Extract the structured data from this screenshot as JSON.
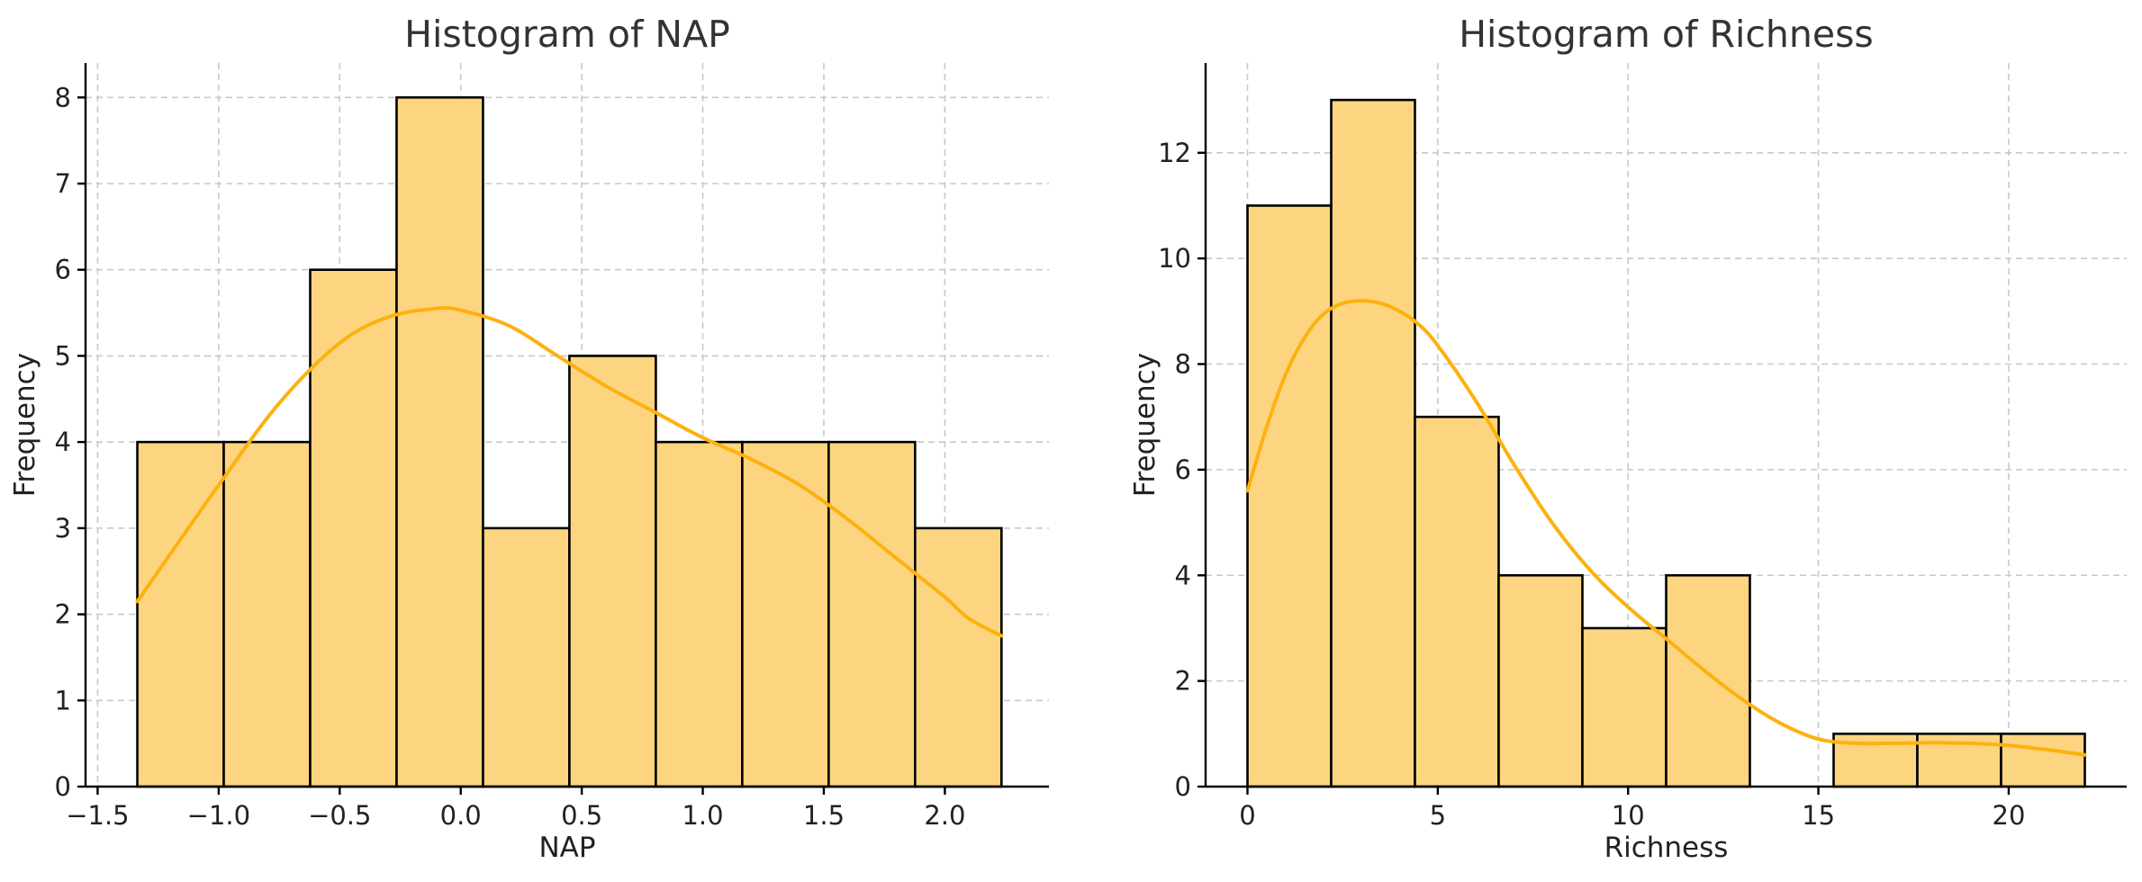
{
  "chart_data": [
    {
      "type": "bar",
      "title": "Histogram of NAP",
      "xlabel": "NAP",
      "ylabel": "Frequency",
      "xlim": [
        -1.55,
        2.43
      ],
      "ylim": [
        0,
        8.4
      ],
      "xticks": [
        -1.5,
        -1.0,
        -0.5,
        0.0,
        0.5,
        1.0,
        1.5,
        2.0
      ],
      "xtick_labels": [
        "−1.5",
        "−1.0",
        "−0.5",
        "0.0",
        "0.5",
        "1.0",
        "1.5",
        "2.0"
      ],
      "yticks": [
        0,
        1,
        2,
        3,
        4,
        5,
        6,
        7,
        8
      ],
      "ytick_labels": [
        "0",
        "1",
        "2",
        "3",
        "4",
        "5",
        "6",
        "7",
        "8"
      ],
      "grid": true,
      "bar_color": "#FDD580",
      "kde_color": "#FDB10F",
      "bins": [
        {
          "x0": -1.336,
          "x1": -0.979,
          "count": 4
        },
        {
          "x0": -0.979,
          "x1": -0.622,
          "count": 4
        },
        {
          "x0": -0.622,
          "x1": -0.265,
          "count": 6
        },
        {
          "x0": -0.265,
          "x1": 0.092,
          "count": 8
        },
        {
          "x0": 0.092,
          "x1": 0.449,
          "count": 3
        },
        {
          "x0": 0.449,
          "x1": 0.806,
          "count": 5
        },
        {
          "x0": 0.806,
          "x1": 1.163,
          "count": 4
        },
        {
          "x0": 1.163,
          "x1": 1.52,
          "count": 4
        },
        {
          "x0": 1.52,
          "x1": 1.877,
          "count": 4
        },
        {
          "x0": 1.877,
          "x1": 2.234,
          "count": 3
        }
      ],
      "kde": {
        "x": [
          -1.336,
          -1.0,
          -0.75,
          -0.5,
          -0.3,
          -0.1,
          0.0,
          0.2,
          0.4,
          0.6,
          0.8,
          1.0,
          1.2,
          1.4,
          1.6,
          1.8,
          2.0,
          2.1,
          2.234
        ],
        "y": [
          2.15,
          3.5,
          4.45,
          5.15,
          5.45,
          5.55,
          5.53,
          5.35,
          5.0,
          4.65,
          4.35,
          4.05,
          3.8,
          3.5,
          3.1,
          2.65,
          2.2,
          1.95,
          1.75
        ]
      }
    },
    {
      "type": "bar",
      "title": "Histogram of Richness",
      "xlabel": "Richness",
      "ylabel": "Frequency",
      "xlim": [
        -1.1,
        23.1
      ],
      "ylim": [
        0,
        13.7
      ],
      "xticks": [
        0,
        5,
        10,
        15,
        20
      ],
      "xtick_labels": [
        "0",
        "5",
        "10",
        "15",
        "20"
      ],
      "yticks": [
        0,
        2,
        4,
        6,
        8,
        10,
        12
      ],
      "ytick_labels": [
        "0",
        "2",
        "4",
        "6",
        "8",
        "10",
        "12"
      ],
      "grid": true,
      "bar_color": "#FDD580",
      "kde_color": "#FDB10F",
      "bins": [
        {
          "x0": 0,
          "x1": 2.2,
          "count": 11
        },
        {
          "x0": 2.2,
          "x1": 4.4,
          "count": 13
        },
        {
          "x0": 4.4,
          "x1": 6.6,
          "count": 7
        },
        {
          "x0": 6.6,
          "x1": 8.8,
          "count": 4
        },
        {
          "x0": 8.8,
          "x1": 11.0,
          "count": 3
        },
        {
          "x0": 11.0,
          "x1": 13.2,
          "count": 4
        },
        {
          "x0": 13.2,
          "x1": 15.4,
          "count": 0
        },
        {
          "x0": 15.4,
          "x1": 17.6,
          "count": 1
        },
        {
          "x0": 17.6,
          "x1": 19.8,
          "count": 1
        },
        {
          "x0": 19.8,
          "x1": 22.0,
          "count": 1
        }
      ],
      "kde": {
        "x": [
          0,
          0.5,
          1,
          1.5,
          2,
          2.5,
          3,
          3.5,
          4,
          4.5,
          5,
          6,
          7,
          8,
          9,
          10,
          11,
          12,
          13,
          14,
          15,
          16,
          17,
          18,
          19,
          20,
          21,
          22
        ],
        "y": [
          5.6,
          6.8,
          7.8,
          8.5,
          8.95,
          9.15,
          9.2,
          9.15,
          9.0,
          8.75,
          8.35,
          7.3,
          6.1,
          5.0,
          4.1,
          3.4,
          2.8,
          2.2,
          1.65,
          1.2,
          0.9,
          0.82,
          0.82,
          0.83,
          0.82,
          0.78,
          0.7,
          0.6
        ]
      }
    }
  ]
}
